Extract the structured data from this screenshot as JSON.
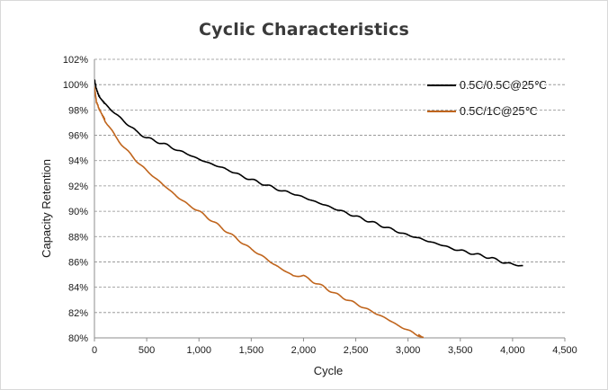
{
  "chart_data": {
    "type": "line",
    "title": "Cyclic Characteristics",
    "xlabel": "Cycle",
    "ylabel": "Capacity Retention",
    "xlim": [
      0,
      4500
    ],
    "ylim": [
      80,
      102
    ],
    "x_ticks": [
      0,
      500,
      1000,
      1500,
      2000,
      2500,
      3000,
      3500,
      4000,
      4500
    ],
    "x_tick_labels": [
      "0",
      "500",
      "1,000",
      "1,500",
      "2,000",
      "2,500",
      "3,000",
      "3,500",
      "4,000",
      "4,500"
    ],
    "y_ticks": [
      80,
      82,
      84,
      86,
      88,
      90,
      92,
      94,
      96,
      98,
      100,
      102
    ],
    "y_tick_labels": [
      "80%",
      "82%",
      "84%",
      "86%",
      "88%",
      "90%",
      "92%",
      "94%",
      "96%",
      "98%",
      "100%",
      "102%"
    ],
    "grid": "horizontal dashed",
    "legend_position": "top-right",
    "series": [
      {
        "name": "0.5C/0.5C@25℃",
        "color": "#000000",
        "x": [
          0,
          20,
          50,
          100,
          200,
          300,
          400,
          500,
          600,
          700,
          800,
          900,
          1000,
          1100,
          1200,
          1300,
          1400,
          1500,
          1600,
          1700,
          1800,
          1900,
          2000,
          2100,
          2200,
          2300,
          2400,
          2500,
          2600,
          2700,
          2800,
          2900,
          3000,
          3100,
          3200,
          3300,
          3400,
          3500,
          3600,
          3700,
          3800,
          3900,
          4000,
          4100
        ],
        "values": [
          100.4,
          99.6,
          99.0,
          98.5,
          97.7,
          97.0,
          96.3,
          95.8,
          95.5,
          95.2,
          94.8,
          94.5,
          94.1,
          93.8,
          93.5,
          93.2,
          92.8,
          92.5,
          92.2,
          91.9,
          91.6,
          91.4,
          91.1,
          90.8,
          90.5,
          90.2,
          89.9,
          89.6,
          89.3,
          89.0,
          88.7,
          88.4,
          88.1,
          87.9,
          87.6,
          87.4,
          87.1,
          86.9,
          86.7,
          86.5,
          86.3,
          86.0,
          85.8,
          85.7
        ]
      },
      {
        "name": "0.5C/1C@25℃",
        "color": "#c0651d",
        "x": [
          0,
          20,
          50,
          100,
          200,
          300,
          400,
          500,
          600,
          700,
          800,
          900,
          1000,
          1100,
          1200,
          1300,
          1400,
          1500,
          1600,
          1700,
          1800,
          1900,
          2000,
          2100,
          2200,
          2300,
          2400,
          2500,
          2600,
          2700,
          2800,
          2900,
          3000,
          3100,
          3150
        ],
        "values": [
          99.8,
          98.6,
          98.0,
          97.2,
          95.9,
          94.9,
          94.0,
          93.2,
          92.5,
          91.8,
          91.1,
          90.5,
          90.0,
          89.4,
          88.8,
          88.2,
          87.6,
          87.0,
          86.5,
          85.9,
          85.4,
          84.9,
          84.9,
          84.4,
          84.0,
          83.5,
          83.1,
          82.7,
          82.3,
          81.9,
          81.5,
          81.0,
          80.6,
          80.2,
          80.0
        ]
      }
    ]
  }
}
